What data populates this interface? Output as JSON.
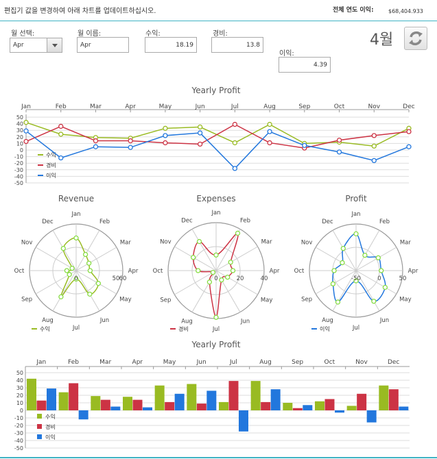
{
  "header": {
    "instruction": "편집기 값을 변경하여 아래 차트를 업데이트하십시오.",
    "total_label": "전체 연도 이익:",
    "total_value": "$68,404.933"
  },
  "form": {
    "month_select_label": "월 선택:",
    "month_select_value": "Apr",
    "month_name_label": "월 이름:",
    "month_name_value": "Apr",
    "revenue_label": "수익:",
    "revenue_value": "18.19",
    "expense_label": "경비:",
    "expense_value": "13.8",
    "profit_label": "이익:",
    "profit_value": "4.39",
    "current_month_display": "4월",
    "refresh_icon": "refresh-icon"
  },
  "colors": {
    "revenue": "#99bb22",
    "expense": "#cc3344",
    "profit": "#2277dd",
    "accent": "#3fb3c4"
  },
  "chart_data": [
    {
      "type": "line",
      "title": "Yearly Profit",
      "categories": [
        "Jan",
        "Feb",
        "Mar",
        "Apr",
        "May",
        "Jun",
        "Jul",
        "Aug",
        "Sep",
        "Oct",
        "Nov",
        "Dec"
      ],
      "ylim": [
        -50,
        50
      ],
      "yticks": [
        50,
        40,
        30,
        20,
        10,
        0,
        -10,
        -20,
        -30,
        -40,
        -50
      ],
      "grid": true,
      "legend": "bottom-left",
      "series": [
        {
          "name": "수익",
          "values": [
            42,
            24,
            19,
            18,
            33,
            35,
            11,
            39,
            10,
            12,
            6,
            33
          ]
        },
        {
          "name": "경비",
          "values": [
            13,
            36,
            14,
            14,
            11,
            9,
            39,
            11,
            3,
            15,
            22,
            28
          ]
        },
        {
          "name": "이익",
          "values": [
            29,
            -12,
            5,
            4,
            22,
            26,
            -28,
            28,
            7,
            -3,
            -16,
            5
          ]
        }
      ]
    },
    {
      "type": "radar",
      "title": "Revenue",
      "categories": [
        "Jan",
        "Feb",
        "Mar",
        "Apr",
        "May",
        "Jun",
        "Jul",
        "Aug",
        "Sep",
        "Oct",
        "Nov",
        "Dec"
      ],
      "rticks": [
        "0",
        "50",
        "60"
      ],
      "series": [
        {
          "name": "수익",
          "values": [
            42,
            24,
            19,
            18,
            33,
            35,
            11,
            39,
            10,
            12,
            6,
            33
          ]
        }
      ]
    },
    {
      "type": "radar",
      "title": "Expenses",
      "categories": [
        "Jan",
        "Feb",
        "Mar",
        "Apr",
        "May",
        "Jun",
        "Jul",
        "Aug",
        "Sep",
        "Oct",
        "Nov",
        "Dec"
      ],
      "rticks": [
        "0",
        "20",
        "40"
      ],
      "series": [
        {
          "name": "경비",
          "values": [
            13,
            36,
            14,
            14,
            11,
            9,
            39,
            11,
            3,
            15,
            22,
            28
          ]
        }
      ]
    },
    {
      "type": "radar",
      "title": "Profit",
      "categories": [
        "Jan",
        "Feb",
        "Mar",
        "Apr",
        "May",
        "Jun",
        "Jul",
        "Aug",
        "Sep",
        "Oct",
        "Nov",
        "Dec"
      ],
      "rticks": [
        "-50",
        "0",
        "50"
      ],
      "series": [
        {
          "name": "이익",
          "values": [
            29,
            -12,
            5,
            4,
            22,
            26,
            -28,
            28,
            7,
            -3,
            -16,
            5
          ]
        }
      ]
    },
    {
      "type": "bar",
      "title": "Yearly Profit",
      "categories": [
        "Jan",
        "Feb",
        "Mar",
        "Apr",
        "May",
        "Jun",
        "Jul",
        "Aug",
        "Sep",
        "Oct",
        "Nov",
        "Dec"
      ],
      "ylim": [
        -50,
        50
      ],
      "yticks": [
        50,
        40,
        30,
        20,
        10,
        0,
        -10,
        -20,
        -30,
        -40,
        -50
      ],
      "grid": true,
      "legend": "bottom-left",
      "series": [
        {
          "name": "수익",
          "values": [
            42,
            24,
            19,
            18,
            33,
            35,
            11,
            39,
            10,
            12,
            6,
            33
          ]
        },
        {
          "name": "경비",
          "values": [
            13,
            36,
            14,
            14,
            11,
            9,
            39,
            11,
            3,
            15,
            22,
            28
          ]
        },
        {
          "name": "이익",
          "values": [
            29,
            -12,
            5,
            4,
            22,
            26,
            -28,
            28,
            7,
            -3,
            -16,
            5
          ]
        }
      ]
    }
  ]
}
